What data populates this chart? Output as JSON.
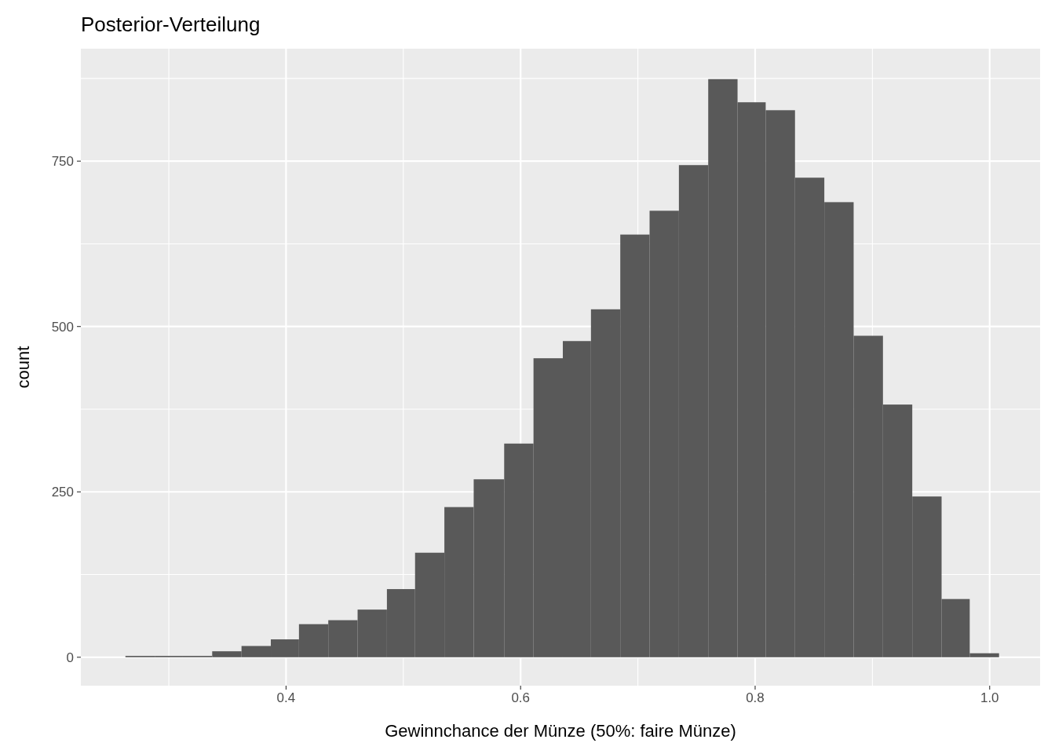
{
  "chart_data": {
    "type": "histogram",
    "title": "Posterior-Verteilung",
    "xlabel": "Gewinnchance der Münze (50%: faire Münze)",
    "ylabel": "count",
    "bins": [
      0.263,
      0.288,
      0.312,
      0.337,
      0.362,
      0.387,
      0.411,
      0.436,
      0.461,
      0.486,
      0.51,
      0.535,
      0.56,
      0.586,
      0.611,
      0.636,
      0.66,
      0.685,
      0.71,
      0.735,
      0.76,
      0.785,
      0.809,
      0.834,
      0.859,
      0.884,
      0.909,
      0.934,
      0.959,
      0.983,
      1.008
    ],
    "values": [
      2,
      2,
      2,
      9,
      17,
      27,
      50,
      56,
      72,
      103,
      158,
      227,
      269,
      323,
      452,
      478,
      526,
      639,
      675,
      744,
      874,
      839,
      827,
      725,
      688,
      486,
      382,
      243,
      88,
      6
    ],
    "color": "#595959",
    "xlim": [
      0.225,
      1.043
    ],
    "ylim": [
      -43,
      920
    ],
    "xticks": [
      0.4,
      0.6,
      0.8,
      {
        "value": 1,
        "label": "1.0"
      }
    ],
    "yticks": [
      0,
      250,
      500,
      750
    ],
    "grid": true
  }
}
